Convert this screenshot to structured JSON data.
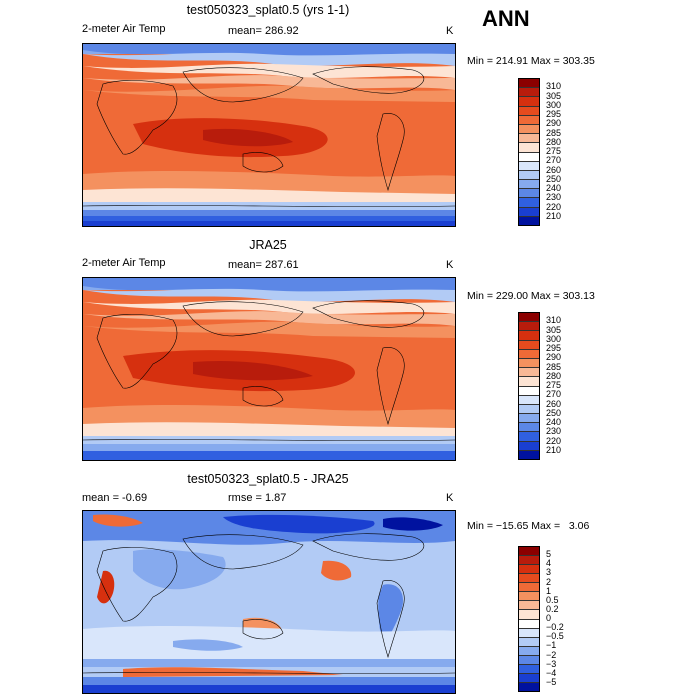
{
  "season": "ANN",
  "panels": [
    {
      "title": "test050323_splat0.5 (yrs 1-1)",
      "left_header": "2-meter Air Temp",
      "mean_text": "mean= 286.92",
      "unit": "K",
      "minmax": "Min = 214.91 Max = 303.35",
      "colorbar_labels": [
        "310",
        "305",
        "300",
        "295",
        "290",
        "285",
        "280",
        "275",
        "270",
        "260",
        "250",
        "240",
        "230",
        "220",
        "210"
      ],
      "colors": [
        "#8b0000",
        "#b81c0c",
        "#d6300f",
        "#e64b1e",
        "#ef6a37",
        "#f4915f",
        "#f8b896",
        "#fde4d4",
        "#ffffff",
        "#d9e6fb",
        "#b2cbf5",
        "#86aaee",
        "#5c87e6",
        "#3060e0",
        "#1a3fd1",
        "#00129f"
      ]
    },
    {
      "title": "JRA25",
      "left_header": "2-meter Air Temp",
      "mean_text": "mean= 287.61",
      "unit": "K",
      "minmax": "Min = 229.00 Max = 303.13",
      "colorbar_labels": [
        "310",
        "305",
        "300",
        "295",
        "290",
        "285",
        "280",
        "275",
        "270",
        "260",
        "250",
        "240",
        "230",
        "220",
        "210"
      ],
      "colors": [
        "#8b0000",
        "#b81c0c",
        "#d6300f",
        "#e64b1e",
        "#ef6a37",
        "#f4915f",
        "#f8b896",
        "#fde4d4",
        "#ffffff",
        "#d9e6fb",
        "#b2cbf5",
        "#86aaee",
        "#5c87e6",
        "#3060e0",
        "#1a3fd1",
        "#00129f"
      ]
    },
    {
      "title": "test050323_splat0.5 - JRA25",
      "left_header": "mean =   -0.69",
      "mid_header": "rmse =   1.87",
      "unit": "K",
      "minmax": "Min = −15.65 Max =   3.06",
      "colorbar_labels": [
        "5",
        "4",
        "3",
        "2",
        "1",
        "0.5",
        "0.2",
        "0",
        "−0.2",
        "−0.5",
        "−1",
        "−2",
        "−3",
        "−4",
        "−5"
      ],
      "colors": [
        "#8b0000",
        "#b81c0c",
        "#d6300f",
        "#e64b1e",
        "#ef6a37",
        "#f4915f",
        "#f8b896",
        "#fde4d4",
        "#ffffff",
        "#d9e6fb",
        "#b2cbf5",
        "#86aaee",
        "#5c87e6",
        "#3060e0",
        "#1a3fd1",
        "#00129f"
      ]
    }
  ]
}
